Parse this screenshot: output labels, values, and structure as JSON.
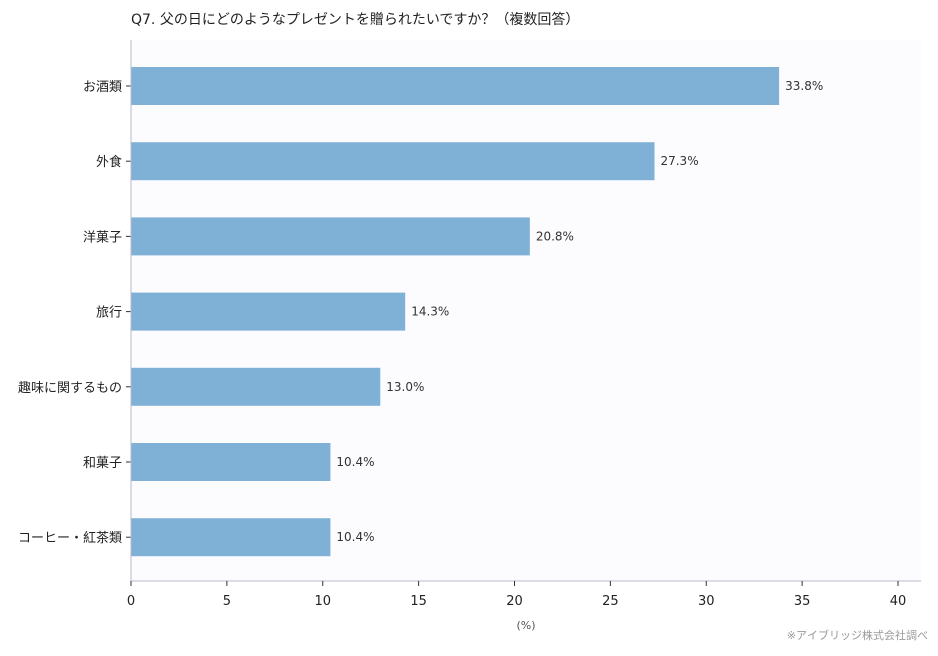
{
  "chart_data": {
    "type": "bar",
    "orientation": "horizontal",
    "title": "Q7. 父の日にどのようなプレゼントを贈られたいですか？（複数回答）",
    "categories": [
      "お酒類",
      "外食",
      "洋菓子",
      "旅行",
      "趣味に関するもの",
      "和菓子",
      "コーヒー・紅茶類"
    ],
    "values": [
      33.8,
      27.3,
      20.8,
      14.3,
      13.0,
      10.4,
      10.4
    ],
    "value_labels": [
      "33.8%",
      "27.3%",
      "20.8%",
      "14.3%",
      "13.0%",
      "10.4%",
      "10.4%"
    ],
    "xlabel": "(%)",
    "ylabel": "",
    "xlim": [
      0,
      40
    ],
    "xticks": [
      0,
      5,
      10,
      15,
      20,
      25,
      30,
      35,
      40
    ],
    "grid": false,
    "bar_color": "#7fb0d5",
    "source_note": "※アイブリッジ株式会社調べ"
  }
}
